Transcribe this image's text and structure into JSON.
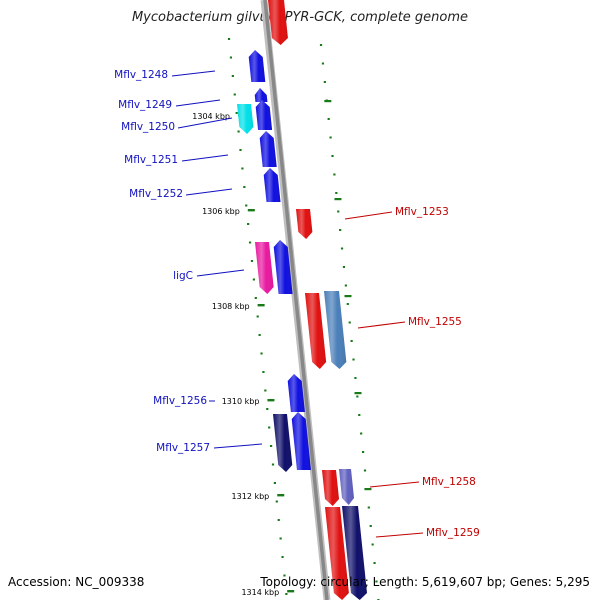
{
  "title": "Mycobacterium gilvum PYR-GCK, complete genome",
  "footer": {
    "accession": "Accession: NC_009338",
    "topology": "Topology: circular; Length: 5,619,607 bp; Genes: 5,295"
  },
  "colors": {
    "plus_label": "#1010c0",
    "minus_label": "#c00000",
    "tick": "#1a7a1a",
    "backbone": "#888888"
  },
  "kbp_marks": [
    {
      "label": "1304 kbp"
    },
    {
      "label": "1306 kbp"
    },
    {
      "label": "1308 kbp"
    },
    {
      "label": "1310 kbp"
    },
    {
      "label": "1312 kbp"
    },
    {
      "label": "1314 kbp"
    }
  ],
  "genes": [
    {
      "name": "Mflv_1248",
      "strand": "+",
      "color": "#1010e0"
    },
    {
      "name": "Mflv_1249",
      "strand": "+",
      "color": "#1010e0"
    },
    {
      "name": "Mflv_1250",
      "strand": "+",
      "color": "#1010e0"
    },
    {
      "name": "Mflv_1251",
      "strand": "+",
      "color": "#1010e0"
    },
    {
      "name": "Mflv_1252",
      "strand": "+",
      "color": "#1010e0"
    },
    {
      "name": "Mflv_1253",
      "strand": "-",
      "color": "#e01010"
    },
    {
      "name": "ligC",
      "strand": "+",
      "color": "#1010e0"
    },
    {
      "name": "Mflv_1255",
      "strand": "-",
      "color": "#e01010"
    },
    {
      "name": "Mflv_1256",
      "strand": "+",
      "color": "#1010e0"
    },
    {
      "name": "Mflv_1257",
      "strand": "+",
      "color": "#1010e0"
    },
    {
      "name": "Mflv_1258",
      "strand": "-",
      "color": "#e01010"
    },
    {
      "name": "Mflv_1259",
      "strand": "-",
      "color": "#e01010"
    }
  ]
}
